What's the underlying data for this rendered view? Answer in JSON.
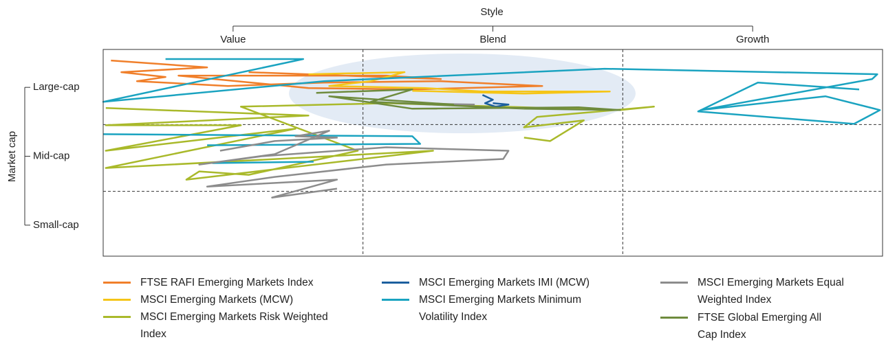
{
  "chart_data": {
    "type": "line",
    "xlabel": "Style",
    "ylabel": "Market cap",
    "xlim": [
      0,
      3
    ],
    "ylim": [
      0,
      3
    ],
    "xticks": [
      {
        "value": 0.5,
        "label": "Value"
      },
      {
        "value": 1.5,
        "label": "Blend"
      },
      {
        "value": 2.5,
        "label": "Growth"
      }
    ],
    "yticks": [
      {
        "value": 0.45,
        "label": "Small-cap"
      },
      {
        "value": 1.45,
        "label": "Mid-cap"
      },
      {
        "value": 2.45,
        "label": "Large-cap"
      }
    ],
    "x_dividers": [
      1,
      2
    ],
    "y_dividers": [
      0.94,
      1.91
    ],
    "series": [
      {
        "name": "FTSE RAFI Emerging Markets Index",
        "color": "#f07f2a",
        "x": [
          0.03,
          0.4,
          0.07,
          0.24,
          0.13,
          0.48,
          0.85,
          1.3,
          1.69,
          1.19,
          0.79,
          0.29,
          1.09,
          1.3,
          0.56
        ],
        "values": [
          2.84,
          2.74,
          2.67,
          2.6,
          2.54,
          2.47,
          2.52,
          2.54,
          2.47,
          2.42,
          2.44,
          2.62,
          2.62,
          2.57,
          2.67
        ]
      },
      {
        "name": "MSCI Emerging Markets (MCW)",
        "color": "#f5c518",
        "x": [
          0.79,
          1.16,
          1.03,
          0.87,
          1.24,
          1.46,
          1.95,
          1.62,
          1.19
        ],
        "values": [
          2.64,
          2.67,
          2.54,
          2.47,
          2.44,
          2.39,
          2.39,
          2.36,
          2.4
        ]
      },
      {
        "name": "MSCI Emerging Markets Risk Weighted Index",
        "color": "#a9b92a",
        "x": [
          0.01,
          0.79,
          0.01,
          0.53,
          0.01,
          0.74,
          0.01,
          1.27,
          0.32,
          0.37,
          0.56,
          0.98,
          0.53,
          1.09,
          1.99,
          2.12,
          1.67,
          1.62,
          1.85,
          1.72,
          1.62
        ],
        "values": [
          2.15,
          2.04,
          1.9,
          1.9,
          1.53,
          1.85,
          1.28,
          1.53,
          1.11,
          1.23,
          1.18,
          1.53,
          2.17,
          2.22,
          2.12,
          2.17,
          2.02,
          1.87,
          1.97,
          1.67,
          1.72
        ]
      },
      {
        "name": "MSCI Emerging Markets IMI (MCW)",
        "color": "#1c5f9e",
        "x": [
          1.46,
          1.5,
          1.47,
          1.51,
          1.56,
          1.5
        ],
        "values": [
          2.34,
          2.27,
          2.22,
          2.17,
          2.2,
          2.22
        ]
      },
      {
        "name": "MSCI Emerging Markets Minimum Volatility Index",
        "color": "#1aa3c0",
        "x": [
          0.24,
          0.77,
          0.0,
          0.85,
          1.93,
          2.98,
          2.96,
          2.3,
          2.78,
          2.99,
          2.89,
          2.29,
          2.52,
          2.91,
          null,
          0.0,
          1.19,
          1.22,
          0.4,
          null,
          0.42,
          0.81
        ],
        "values": [
          2.86,
          2.86,
          2.24,
          2.54,
          2.72,
          2.64,
          2.57,
          2.12,
          2.32,
          2.12,
          1.92,
          2.1,
          2.52,
          2.42,
          null,
          1.77,
          1.74,
          1.63,
          1.61,
          null,
          1.35,
          1.37
        ]
      },
      {
        "name": "MSCI Emerging Markets Equal Weighted Index",
        "color": "#8c8c8c",
        "x": [
          1.14,
          1.43,
          null,
          0.45,
          0.66,
          0.9,
          0.74,
          0.87,
          0.66,
          0.37,
          0.61,
          1.09,
          1.56,
          1.54,
          1.09,
          0.66,
          0.4,
          0.9,
          0.65,
          0.9
        ],
        "values": [
          2.22,
          2.2,
          null,
          1.53,
          1.67,
          1.72,
          1.74,
          1.82,
          1.48,
          1.33,
          1.45,
          1.58,
          1.53,
          1.41,
          1.33,
          1.15,
          1.01,
          1.11,
          0.85,
          0.98
        ]
      },
      {
        "name": "FTSE Global Emerging All Cap Index",
        "color": "#6e8b3d",
        "x": [
          0.82,
          1.19,
          1.03,
          1.62,
          1.99,
          1.83,
          1.19,
          0.87,
          1.35
        ],
        "values": [
          2.37,
          2.42,
          2.24,
          2.14,
          2.12,
          2.16,
          2.14,
          2.32,
          2.2
        ]
      }
    ]
  }
}
